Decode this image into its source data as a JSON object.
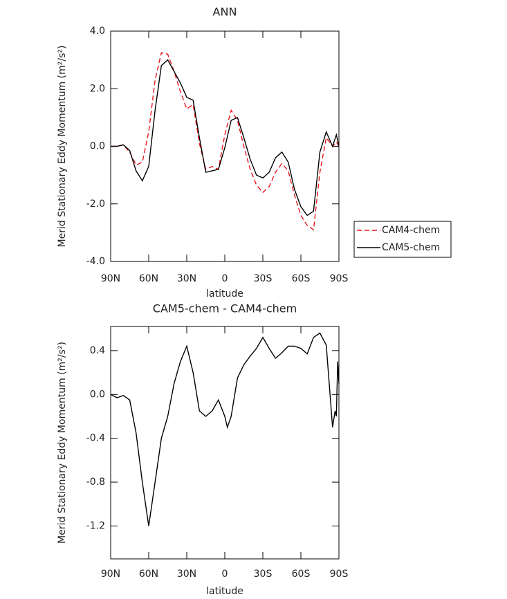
{
  "chart_data": [
    {
      "type": "line",
      "title": "ANN",
      "xlabel": "latitude",
      "ylabel": "Merid Stationary Eddy Momentum (m²/s²)",
      "x": [
        90,
        85,
        80,
        75,
        70,
        65,
        60,
        55,
        50,
        45,
        40,
        35,
        30,
        25,
        20,
        15,
        10,
        5,
        0,
        -5,
        -10,
        -15,
        -20,
        -25,
        -30,
        -35,
        -40,
        -45,
        -50,
        -55,
        -60,
        -65,
        -70,
        -75,
        -80,
        -85,
        -88,
        -90
      ],
      "xlim": [
        90,
        -90
      ],
      "xticks": [
        {
          "value": 90,
          "label": "90N"
        },
        {
          "value": 60,
          "label": "60N"
        },
        {
          "value": 30,
          "label": "30N"
        },
        0,
        {
          "value": -30,
          "label": "30S"
        },
        {
          "value": -60,
          "label": "60S"
        },
        {
          "value": -90,
          "label": "90S"
        }
      ],
      "ylim": [
        -4,
        4
      ],
      "yticks": [
        {
          "value": 4,
          "label": "4.0"
        },
        {
          "value": 2,
          "label": "2.0"
        },
        {
          "value": 0,
          "label": "0.0"
        },
        {
          "value": -2,
          "label": "-2.0"
        },
        {
          "value": -4,
          "label": "-4.0"
        }
      ],
      "legend": "right",
      "series": [
        {
          "name": "CAM4-chem",
          "color": "#e8141c",
          "dashed": true,
          "values": [
            0.0,
            0.0,
            0.05,
            -0.2,
            -0.65,
            -0.55,
            0.5,
            2.3,
            3.25,
            3.2,
            2.6,
            1.9,
            1.3,
            1.45,
            0.1,
            -0.8,
            -0.7,
            -0.8,
            0.4,
            1.25,
            0.9,
            0.0,
            -0.8,
            -1.35,
            -1.6,
            -1.4,
            -0.9,
            -0.6,
            -0.85,
            -1.7,
            -2.4,
            -2.75,
            -2.9,
            -0.9,
            0.3,
            0.0,
            0.15,
            0.0
          ]
        },
        {
          "name": "CAM5-chem",
          "color": "#000000",
          "dashed": false,
          "values": [
            0.0,
            0.0,
            0.05,
            -0.15,
            -0.85,
            -1.2,
            -0.7,
            1.25,
            2.8,
            3.0,
            2.6,
            2.2,
            1.7,
            1.6,
            0.3,
            -0.9,
            -0.85,
            -0.8,
            -0.05,
            0.9,
            1.0,
            0.3,
            -0.45,
            -1.0,
            -1.1,
            -0.9,
            -0.4,
            -0.2,
            -0.55,
            -1.5,
            -2.1,
            -2.4,
            -2.25,
            -0.2,
            0.5,
            0.0,
            0.4,
            0.0
          ]
        }
      ]
    },
    {
      "type": "line",
      "title": "CAM5-chem - CAM4-chem",
      "xlabel": "latitude",
      "ylabel": "Merid Stationary Eddy Momentum (m²/s²)",
      "x": [
        90,
        85,
        80,
        75,
        70,
        65,
        60,
        55,
        50,
        45,
        40,
        35,
        30,
        25,
        20,
        15,
        10,
        5,
        0,
        -2,
        -5,
        -10,
        -15,
        -20,
        -25,
        -30,
        -35,
        -40,
        -45,
        -50,
        -55,
        -60,
        -65,
        -70,
        -75,
        -80,
        -85,
        -87,
        -88,
        -89,
        -90
      ],
      "xlim": [
        90,
        -90
      ],
      "xticks": [
        {
          "value": 90,
          "label": "90N"
        },
        {
          "value": 60,
          "label": "60N"
        },
        {
          "value": 30,
          "label": "30N"
        },
        0,
        {
          "value": -30,
          "label": "30S"
        },
        {
          "value": -60,
          "label": "60S"
        },
        {
          "value": -90,
          "label": "90S"
        }
      ],
      "ylim": [
        -1.5,
        0.62
      ],
      "yticks": [
        0.4,
        {
          "value": 0,
          "label": "0.0"
        },
        -0.4,
        -0.8,
        -1.2
      ],
      "series": [
        {
          "color": "#000000",
          "dashed": false,
          "values": [
            0.0,
            -0.03,
            -0.01,
            -0.05,
            -0.35,
            -0.8,
            -1.2,
            -0.8,
            -0.4,
            -0.2,
            0.1,
            0.3,
            0.44,
            0.2,
            -0.15,
            -0.2,
            -0.15,
            -0.05,
            -0.2,
            -0.3,
            -0.2,
            0.15,
            0.27,
            0.35,
            0.42,
            0.52,
            0.42,
            0.33,
            0.38,
            0.44,
            0.44,
            0.42,
            0.37,
            0.52,
            0.56,
            0.45,
            -0.3,
            -0.15,
            -0.2,
            0.3,
            0.1
          ]
        }
      ]
    }
  ]
}
